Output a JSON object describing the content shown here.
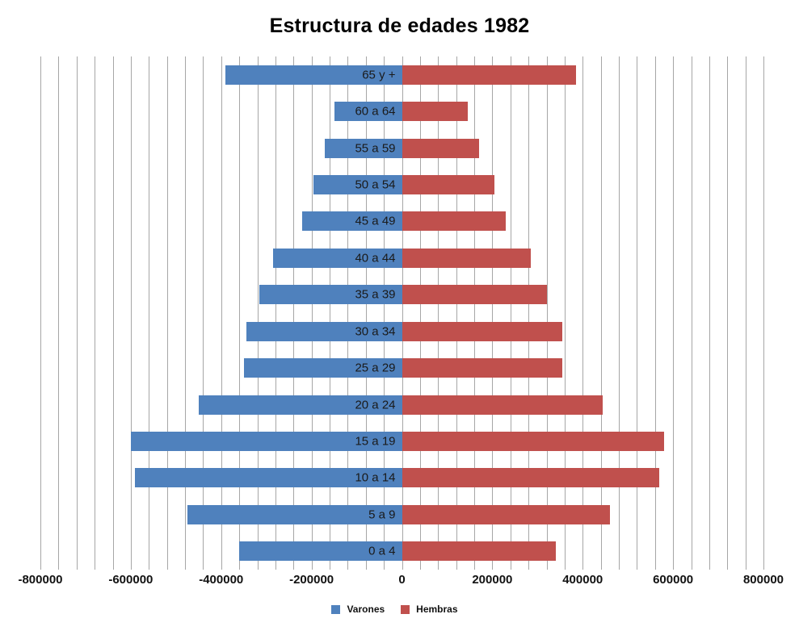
{
  "colors": {
    "male": "#4F81BD",
    "female": "#C0504D",
    "gridline": "#A6A6A6",
    "title_text": "#000000",
    "axis_text": "#111111",
    "category_text": "#1A1A1A",
    "background": "#FFFFFF"
  },
  "legend": {
    "male_label": "Varones",
    "female_label": "Hembras"
  },
  "chart_data": {
    "type": "bar",
    "orientation": "horizontal",
    "subtype": "population-pyramid",
    "title": "Estructura de edades 1982",
    "categories": [
      "65 y +",
      "60 a 64",
      "55 a 59",
      "50 a 54",
      "45 a 49",
      "40 a 44",
      "35 a 39",
      "30 a 34",
      "25 a 29",
      "20 a 24",
      "15 a 19",
      "10 a 14",
      "5 a 9",
      "0 a 4"
    ],
    "series": [
      {
        "name": "Varones",
        "values": [
          -390000,
          -150000,
          -170000,
          -195000,
          -220000,
          -285000,
          -315000,
          -345000,
          -350000,
          -450000,
          -600000,
          -590000,
          -475000,
          -360000
        ]
      },
      {
        "name": "Hembras",
        "values": [
          385000,
          145000,
          170000,
          205000,
          230000,
          285000,
          320000,
          355000,
          355000,
          445000,
          580000,
          570000,
          460000,
          340000
        ]
      }
    ],
    "xlim": [
      -800000,
      800000
    ],
    "x_major_ticks": [
      -800000,
      -600000,
      -400000,
      -200000,
      0,
      200000,
      400000,
      600000,
      800000
    ],
    "x_tick_labels": [
      "-800000",
      "-600000",
      "-400000",
      "-200000",
      "0",
      "200000",
      "400000",
      "600000",
      "800000"
    ],
    "x_minor_unit": 40000,
    "grid": true,
    "legend_position": "bottom"
  }
}
